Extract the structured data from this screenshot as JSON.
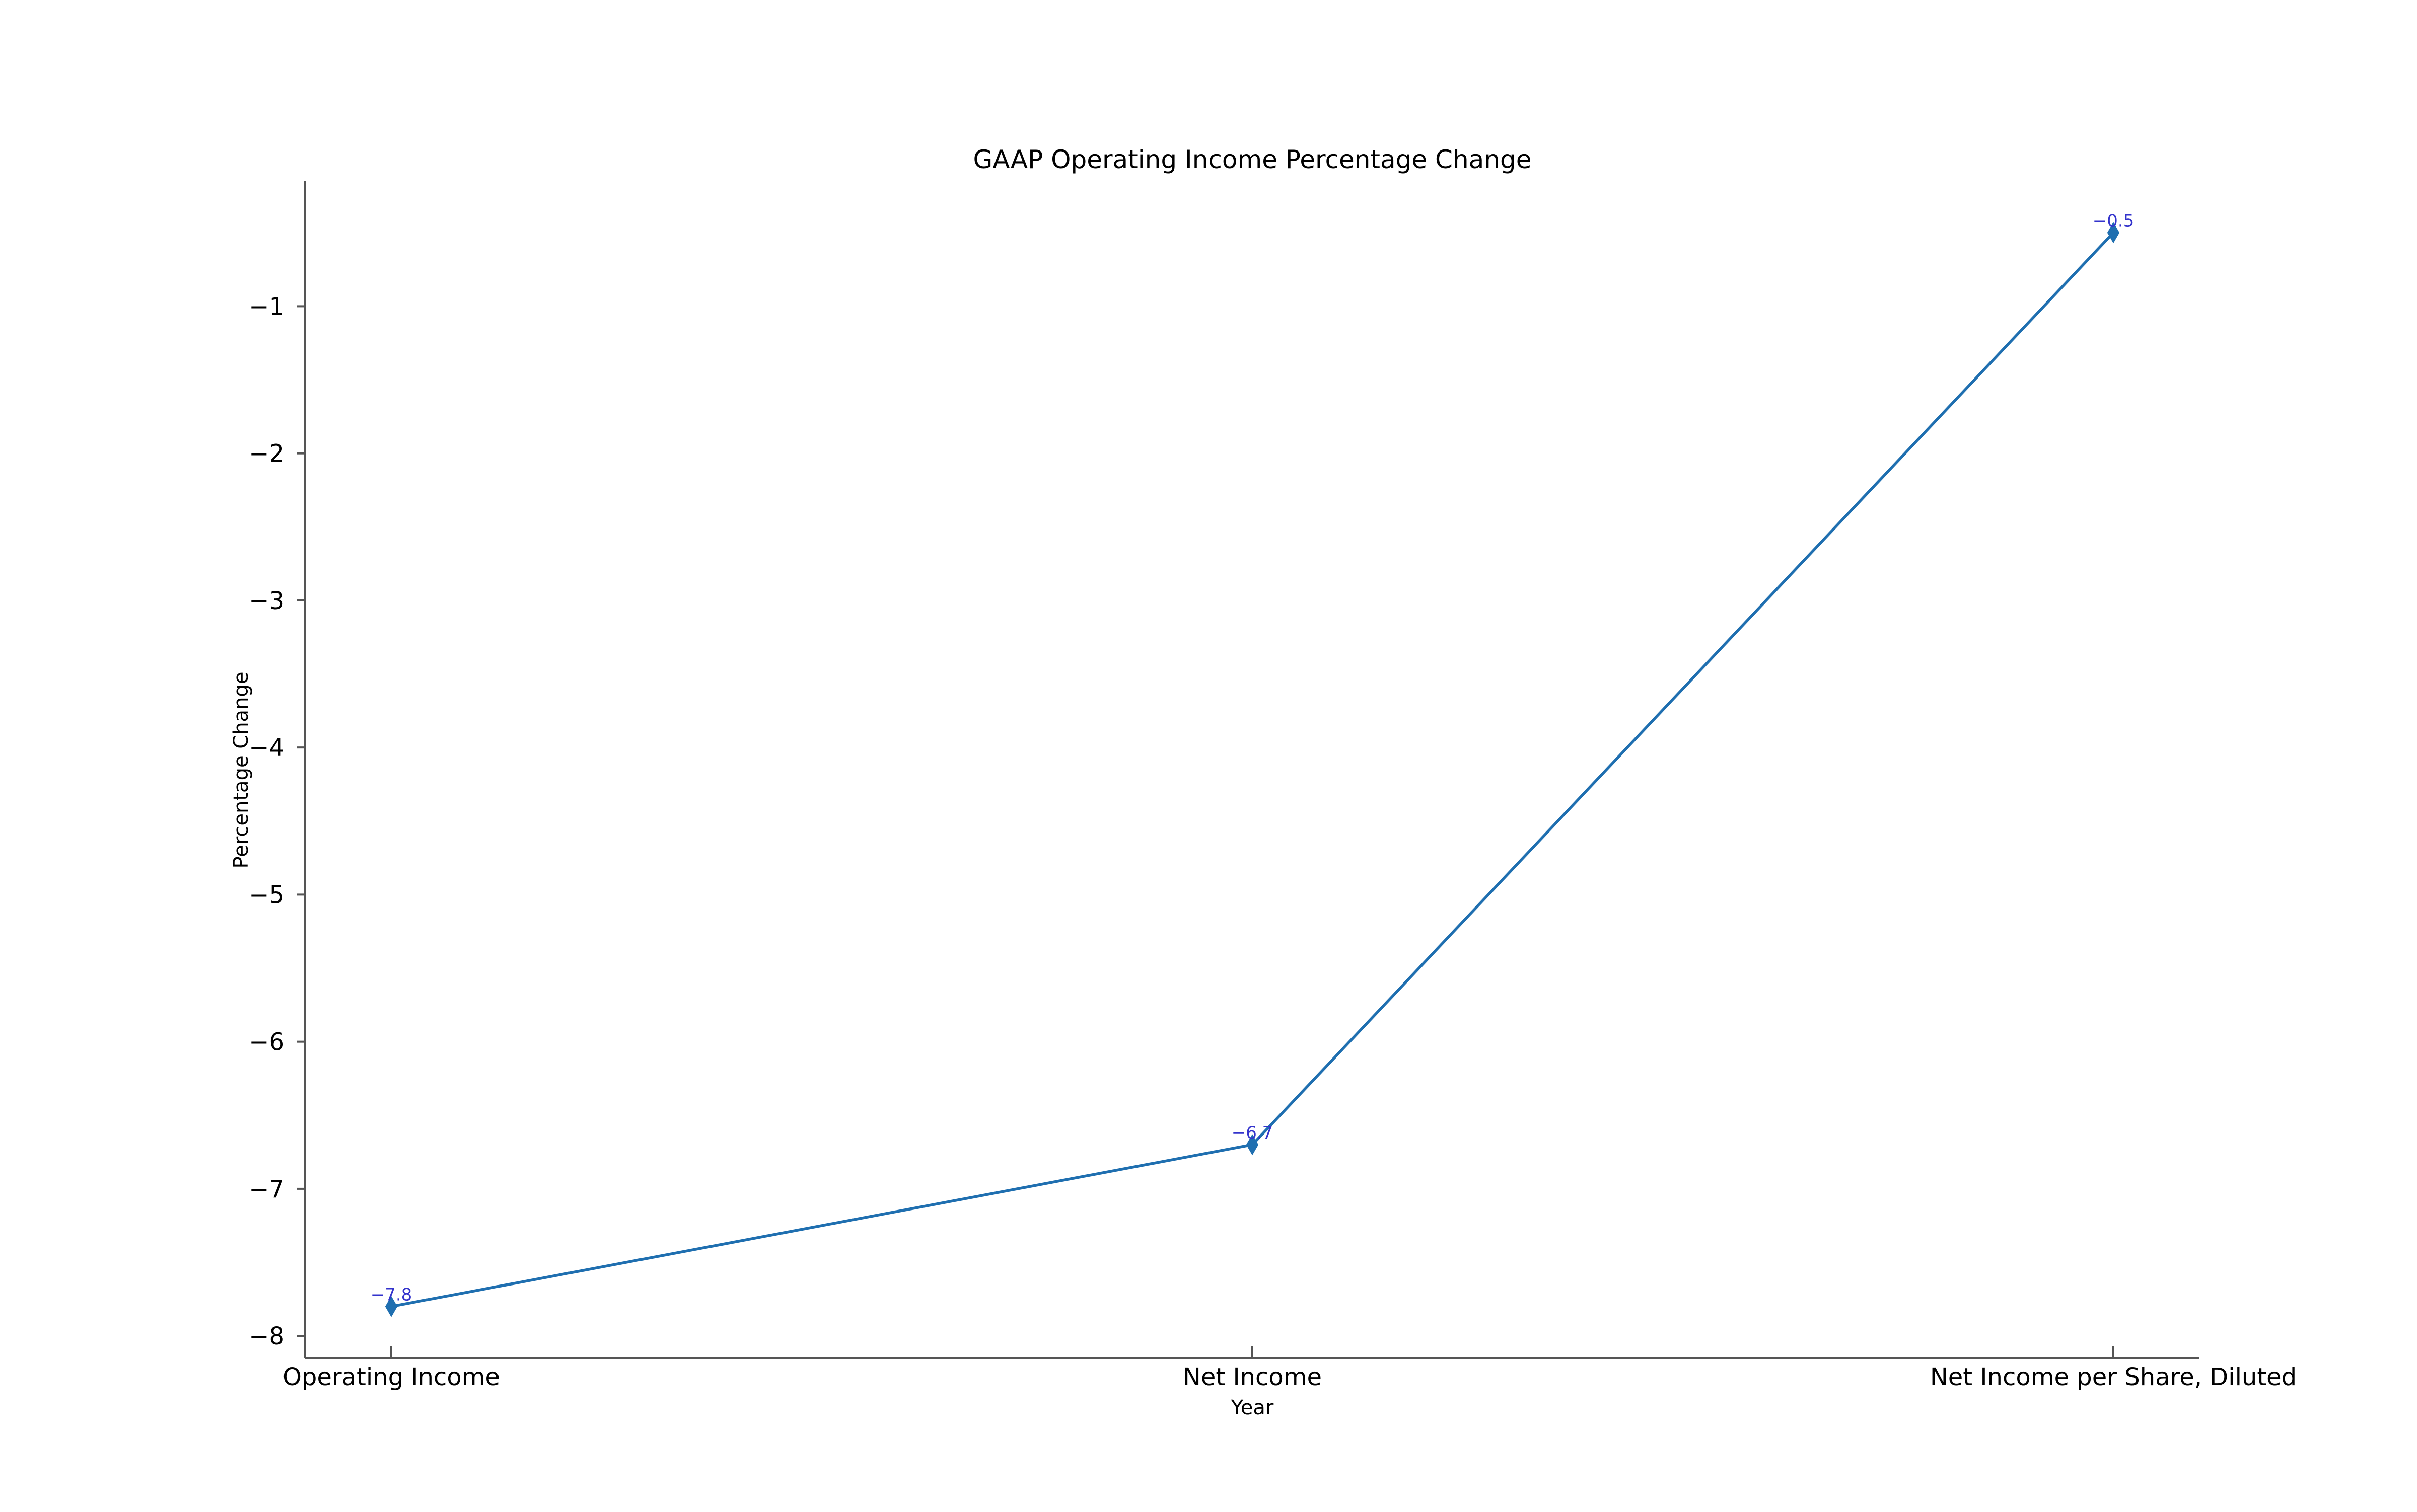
{
  "chart_data": {
    "type": "line",
    "title": "GAAP Operating Income Percentage Change",
    "xlabel": "Year",
    "ylabel": "Percentage Change",
    "categories": [
      "Operating Income",
      "Net Income",
      "Net Income per Share, Diluted"
    ],
    "series": [
      {
        "values": [
          -7.8,
          -6.7,
          -0.5
        ],
        "marker": "diamond"
      }
    ],
    "data_labels": [
      "−7.8",
      "−6.7",
      "−0.5"
    ],
    "ylim": [
      -8.15,
      -0.15
    ],
    "yticks": [
      -8,
      -7,
      -6,
      -5,
      -4,
      -3,
      -2,
      -1
    ],
    "ytick_labels": [
      "−8",
      "−7",
      "−6",
      "−5",
      "−4",
      "−3",
      "−2",
      "−1"
    ],
    "grid": false,
    "legend": "none",
    "colors": {
      "line": "#1f6fb0",
      "marker": "#1f6fb0",
      "data_label": "#3333cc",
      "axis": "#555555"
    }
  }
}
